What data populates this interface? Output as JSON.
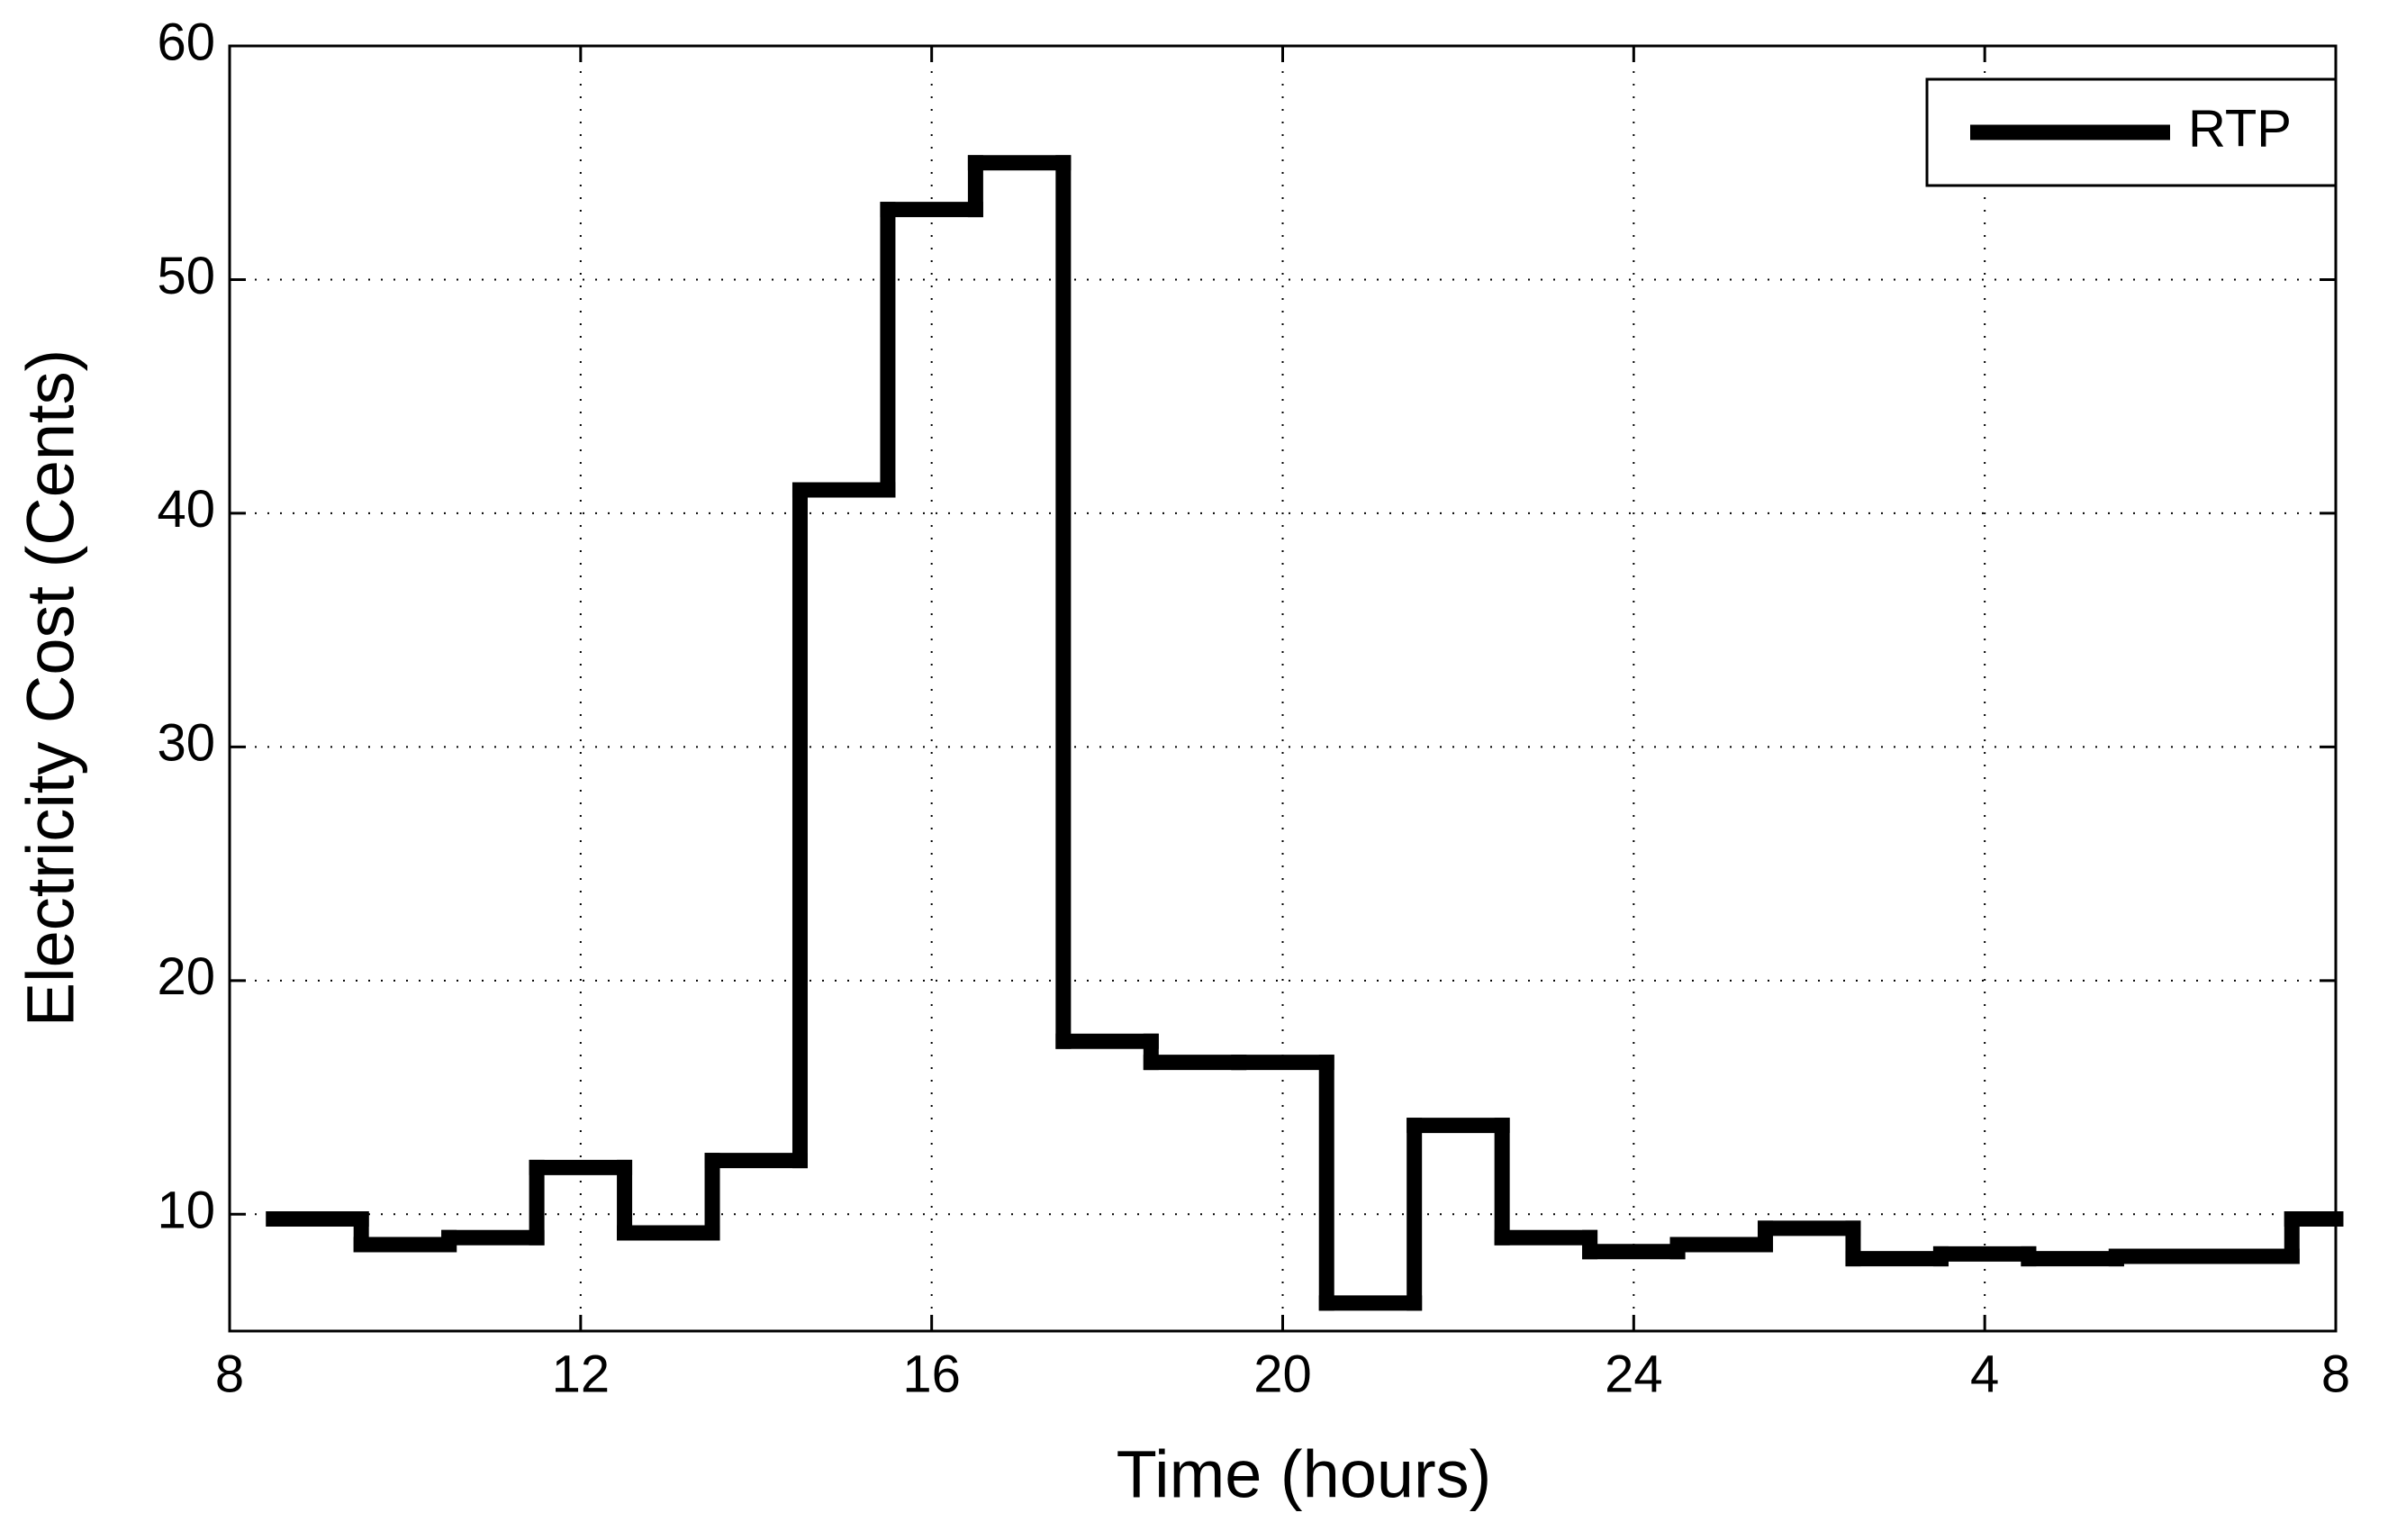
{
  "chart_data": {
    "type": "step",
    "xlabel": "Time (hours)",
    "ylabel": "Electricity Cost (Cents)",
    "x": [
      8.5,
      9.5,
      10.5,
      11.5,
      12.5,
      13.5,
      14.5,
      15.5,
      16.5,
      17.5,
      18.5,
      19.5,
      20.5,
      21.5,
      22.5,
      23.5,
      24.5,
      25.5,
      26.5,
      27.5,
      28.5,
      29.5,
      30.5,
      31.5
    ],
    "series": [
      {
        "name": "RTP",
        "color": "#000000",
        "values": [
          9.8,
          8.7,
          9.0,
          12.0,
          9.2,
          12.3,
          41,
          53,
          55,
          17.4,
          16.5,
          16.5,
          6.2,
          13.8,
          9.0,
          8.4,
          8.7,
          9.4,
          8.1,
          8.3,
          8.1,
          8.2,
          8.2,
          9.8
        ]
      }
    ],
    "xlim": [
      8,
      32
    ],
    "xticks": [
      8,
      12,
      16,
      20,
      24,
      {
        "value": 28,
        "label": "4"
      },
      {
        "value": 32,
        "label": "8"
      }
    ],
    "ylim": [
      5,
      60
    ],
    "yticks": [
      10,
      20,
      30,
      40,
      50,
      60
    ],
    "grid": true,
    "legend": "upper right"
  }
}
